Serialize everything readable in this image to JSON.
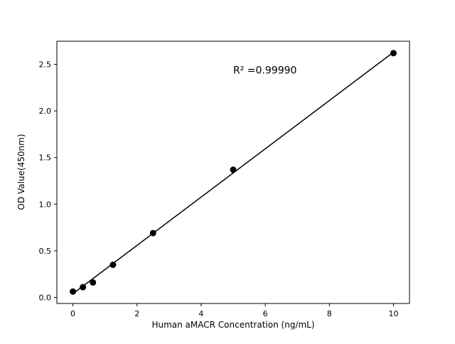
{
  "chart_data": {
    "type": "scatter",
    "title": "",
    "xlabel": "Human aMACR Concentration (ng/mL)",
    "ylabel": "OD Value(450nm)",
    "x": [
      0,
      0.3125,
      0.625,
      1.25,
      2.5,
      5,
      10
    ],
    "y": [
      0.063,
      0.11,
      0.16,
      0.35,
      0.69,
      1.37,
      2.62
    ],
    "xticks": [
      0,
      2,
      4,
      6,
      8,
      10
    ],
    "xtick_labels": [
      "0",
      "2",
      "4",
      "6",
      "8",
      "10"
    ],
    "yticks": [
      0.0,
      0.5,
      1.0,
      1.5,
      2.0,
      2.5
    ],
    "ytick_labels": [
      "0.0",
      "0.5",
      "1.0",
      "1.5",
      "2.0",
      "2.5"
    ],
    "xlim": [
      -0.5,
      10.5
    ],
    "ylim": [
      -0.065,
      2.748
    ],
    "grid": false,
    "legend": null,
    "annotation": {
      "text": "R² =0.99990",
      "x": 5.0,
      "y": 2.4
    },
    "fit_line": {
      "x1": 0,
      "y1": 0.04,
      "x2": 10,
      "y2": 2.63
    },
    "marker_color": "#000000",
    "line_color": "#000000",
    "background_color": "#ffffff"
  }
}
